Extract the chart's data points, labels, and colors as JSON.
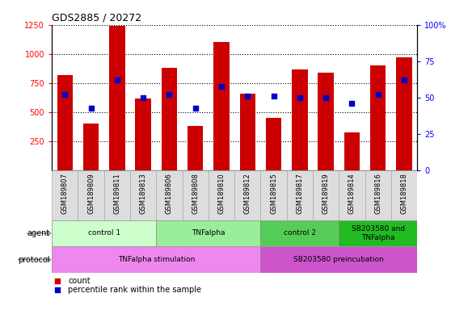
{
  "title": "GDS2885 / 20272",
  "samples": [
    "GSM189807",
    "GSM189809",
    "GSM189811",
    "GSM189813",
    "GSM189806",
    "GSM189808",
    "GSM189810",
    "GSM189812",
    "GSM189815",
    "GSM189817",
    "GSM189819",
    "GSM189814",
    "GSM189816",
    "GSM189818"
  ],
  "counts": [
    820,
    400,
    1240,
    620,
    880,
    380,
    1100,
    660,
    450,
    870,
    840,
    330,
    900,
    970
  ],
  "percentiles": [
    52,
    43,
    62,
    50,
    52,
    43,
    58,
    51,
    51,
    50,
    50,
    46,
    52,
    62
  ],
  "bar_color": "#cc0000",
  "dot_color": "#0000cc",
  "ylim_left": [
    0,
    1250
  ],
  "ylim_right": [
    0,
    100
  ],
  "yticks_left": [
    250,
    500,
    750,
    1000,
    1250
  ],
  "yticks_right": [
    0,
    25,
    50,
    75,
    100
  ],
  "agent_groups": [
    {
      "label": "control 1",
      "start": 0,
      "end": 4,
      "color": "#ccffcc"
    },
    {
      "label": "TNFalpha",
      "start": 4,
      "end": 8,
      "color": "#99ee99"
    },
    {
      "label": "control 2",
      "start": 8,
      "end": 11,
      "color": "#55cc55"
    },
    {
      "label": "SB203580 and\nTNFalpha",
      "start": 11,
      "end": 14,
      "color": "#22bb22"
    }
  ],
  "protocol_groups": [
    {
      "label": "TNFalpha stimulation",
      "start": 0,
      "end": 8,
      "color": "#ee88ee"
    },
    {
      "label": "SB203580 preincubation",
      "start": 8,
      "end": 14,
      "color": "#cc55cc"
    }
  ],
  "legend_count": "count",
  "legend_pct": "percentile rank within the sample"
}
